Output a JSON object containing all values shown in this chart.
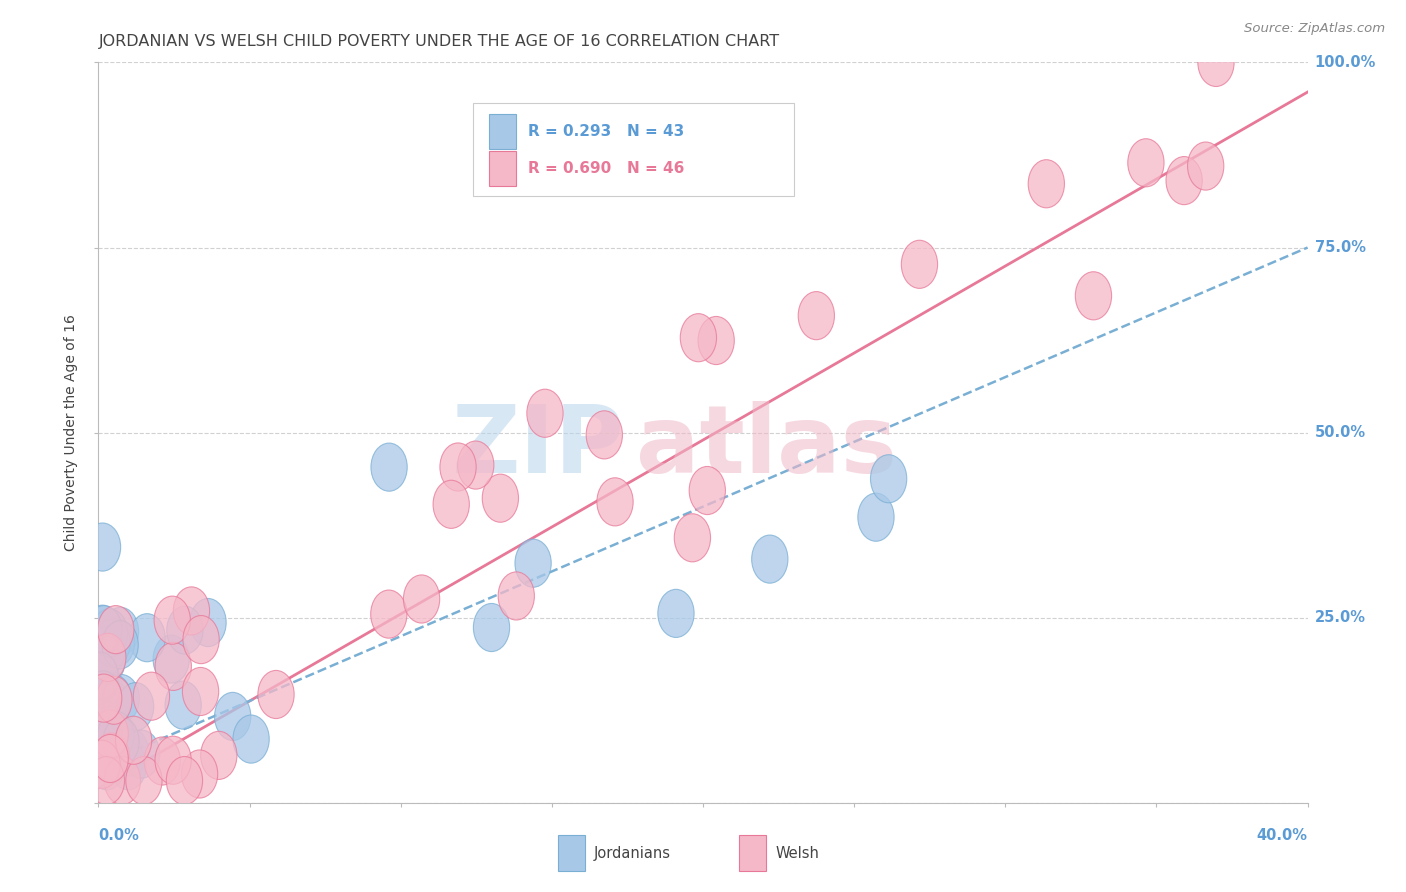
{
  "title": "JORDANIAN VS WELSH CHILD POVERTY UNDER THE AGE OF 16 CORRELATION CHART",
  "source": "Source: ZipAtlas.com",
  "ylabel": "Child Poverty Under the Age of 16",
  "xlim": [
    0.0,
    40.0
  ],
  "ylim": [
    0.0,
    100.0
  ],
  "legend_r_jordan": "R = 0.293",
  "legend_n_jordan": "N = 43",
  "legend_r_welsh": "R = 0.690",
  "legend_n_welsh": "N = 46",
  "jordanians_color": "#a8c8e8",
  "jordanians_edge_color": "#7aafd4",
  "welsh_color": "#f5b8c8",
  "welsh_edge_color": "#e87898",
  "jordanians_line_color": "#7aafd4",
  "welsh_line_color": "#e87898",
  "background_color": "#ffffff",
  "grid_color": "#cccccc",
  "title_color": "#444444",
  "axis_tick_color": "#5b9bd5",
  "watermark_zip_color": "#b8d4ec",
  "watermark_atlas_color": "#f0b8c8",
  "scatter_size": 180,
  "scatter_alpha": 0.75
}
